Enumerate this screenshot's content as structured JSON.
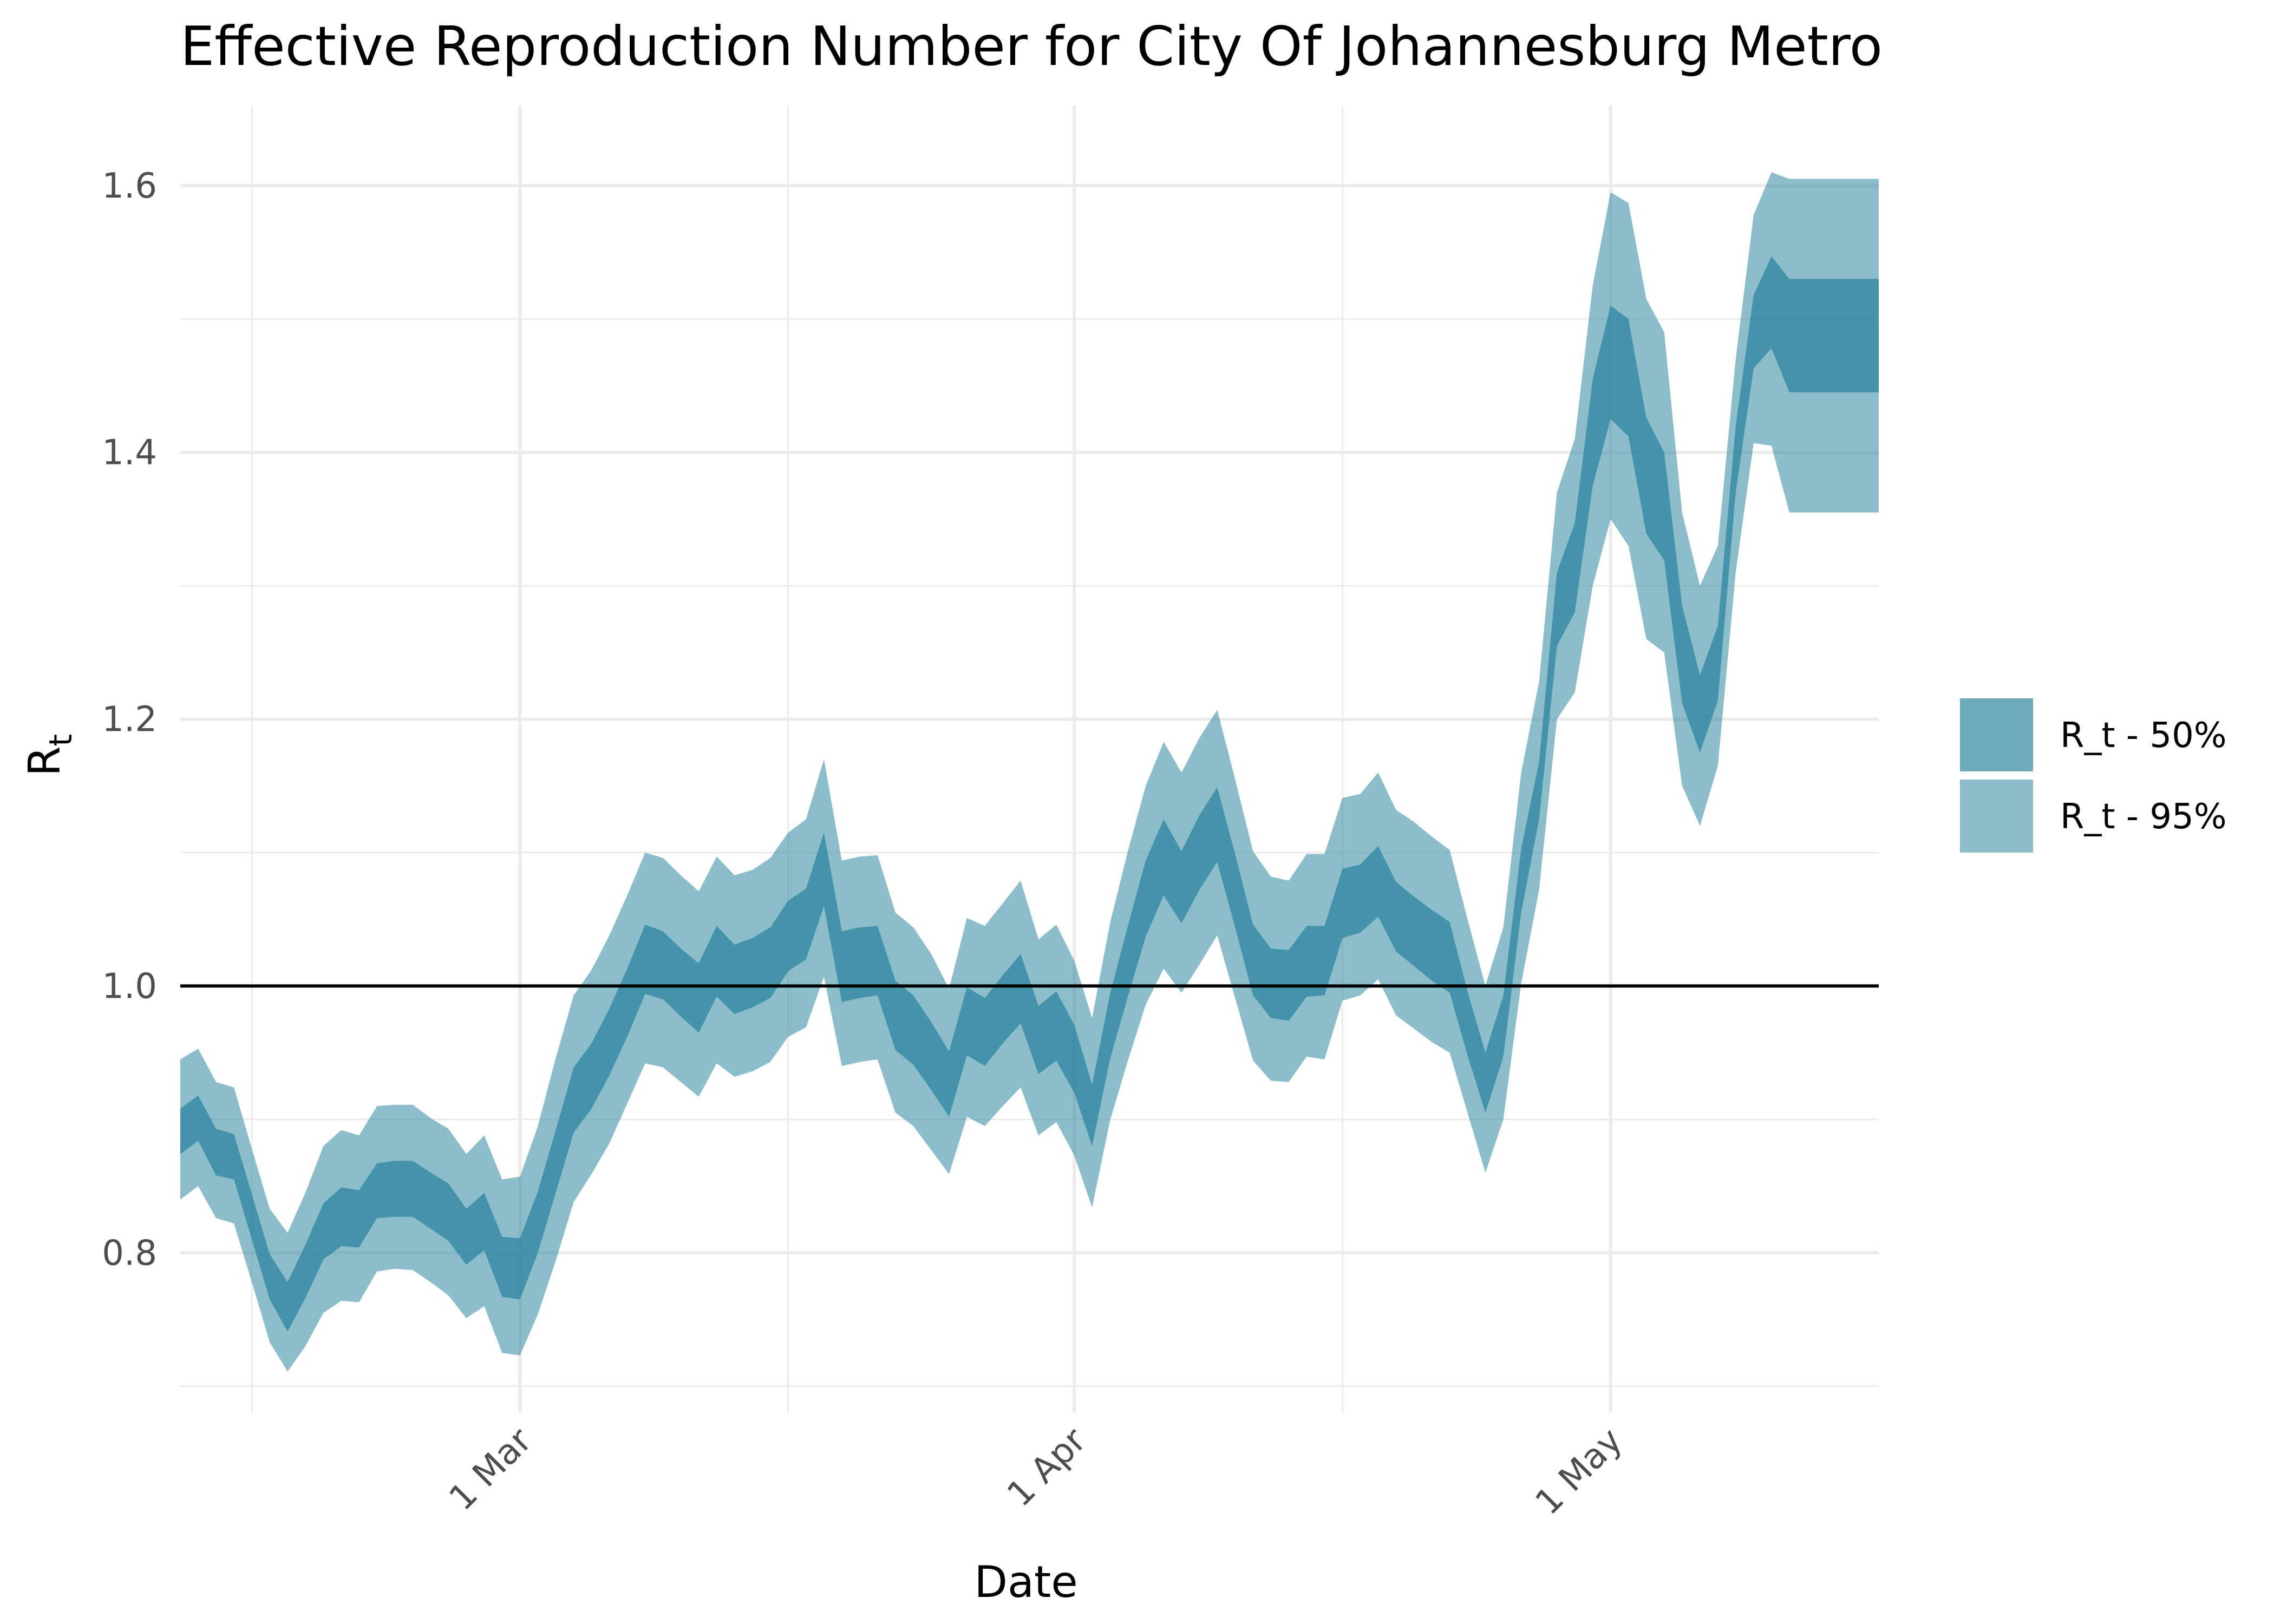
{
  "chart_data": {
    "type": "area",
    "title": "Effective Reproduction Number for City Of Johannesburg Metro",
    "xlabel": "Date",
    "ylabel": "R",
    "ylabel_subscript": "t",
    "ylim": [
      0.68,
      1.66
    ],
    "xlim": [
      "2020-02-11",
      "2020-05-16"
    ],
    "x_ticks": [
      {
        "date": "2020-03-01",
        "label": "1 Mar"
      },
      {
        "date": "2020-04-01",
        "label": "1 Apr"
      },
      {
        "date": "2020-05-01",
        "label": "1 May"
      }
    ],
    "x_minor_ticks": [
      "2020-02-15",
      "2020-03-16",
      "2020-04-16"
    ],
    "y_ticks": [
      0.8,
      1.0,
      1.2,
      1.4,
      1.6
    ],
    "y_minor_ticks": [
      0.7,
      0.9,
      1.1,
      1.3,
      1.5
    ],
    "reference_line": 1.0,
    "grid": true,
    "legend_position": "right",
    "colors": {
      "band_50": "#2e86a0",
      "band_95": "#2e86a0",
      "band_50_opacity": 0.7,
      "band_95_opacity": 0.55,
      "reference_line": "#000000",
      "grid": "#ebebeb"
    },
    "start_date": "2020-02-10",
    "series": [
      {
        "name": "R_t - 95%",
        "dates": [
          "2020-02-11",
          "2020-02-12",
          "2020-02-13",
          "2020-02-14",
          "2020-02-15",
          "2020-02-16",
          "2020-02-17",
          "2020-02-18",
          "2020-02-19",
          "2020-02-20",
          "2020-02-21",
          "2020-02-22",
          "2020-02-23",
          "2020-02-24",
          "2020-02-25",
          "2020-02-26",
          "2020-02-27",
          "2020-02-28",
          "2020-02-29",
          "2020-03-01",
          "2020-03-02",
          "2020-03-03",
          "2020-03-04",
          "2020-03-05",
          "2020-03-06",
          "2020-03-07",
          "2020-03-08",
          "2020-03-09",
          "2020-03-10",
          "2020-03-11",
          "2020-03-12",
          "2020-03-13",
          "2020-03-14",
          "2020-03-15",
          "2020-03-16",
          "2020-03-17",
          "2020-03-18",
          "2020-03-19",
          "2020-03-20",
          "2020-03-21",
          "2020-03-22",
          "2020-03-23",
          "2020-03-24",
          "2020-03-25",
          "2020-03-26",
          "2020-03-27",
          "2020-03-28",
          "2020-03-29",
          "2020-03-30",
          "2020-03-31",
          "2020-04-01",
          "2020-04-02",
          "2020-04-03",
          "2020-04-04",
          "2020-04-05",
          "2020-04-06",
          "2020-04-07",
          "2020-04-08",
          "2020-04-09",
          "2020-04-10",
          "2020-04-11",
          "2020-04-12",
          "2020-04-13",
          "2020-04-14",
          "2020-04-15",
          "2020-04-16",
          "2020-04-17",
          "2020-04-18",
          "2020-04-19",
          "2020-04-20",
          "2020-04-21",
          "2020-04-22",
          "2020-04-23",
          "2020-04-24",
          "2020-04-25",
          "2020-04-26",
          "2020-04-27",
          "2020-04-28",
          "2020-04-29",
          "2020-04-30",
          "2020-05-01",
          "2020-05-02",
          "2020-05-03",
          "2020-05-04",
          "2020-05-05",
          "2020-05-06",
          "2020-05-07",
          "2020-05-08",
          "2020-05-09",
          "2020-05-10",
          "2020-05-11",
          "2020-05-12",
          "2020-05-13",
          "2020-05-14",
          "2020-05-15",
          "2020-05-16"
        ],
        "upper": [
          0.945,
          0.953,
          0.928,
          0.924,
          0.878,
          0.833,
          0.815,
          0.845,
          0.88,
          0.892,
          0.888,
          0.91,
          0.911,
          0.911,
          0.901,
          0.893,
          0.874,
          0.888,
          0.855,
          0.857,
          0.895,
          0.946,
          0.993,
          1.012,
          1.038,
          1.068,
          1.1,
          1.096,
          1.083,
          1.071,
          1.097,
          1.083,
          1.087,
          1.096,
          1.115,
          1.125,
          1.17,
          1.094,
          1.097,
          1.098,
          1.055,
          1.044,
          1.024,
          0.998,
          1.051,
          1.045,
          1.062,
          1.079,
          1.035,
          1.046,
          1.019,
          0.976,
          1.047,
          1.101,
          1.15,
          1.183,
          1.16,
          1.186,
          1.207,
          1.155,
          1.101,
          1.082,
          1.079,
          1.099,
          1.099,
          1.141,
          1.144,
          1.16,
          1.132,
          1.123,
          1.112,
          1.102,
          1.05,
          1.0,
          1.044,
          1.16,
          1.228,
          1.37,
          1.41,
          1.525,
          1.595,
          1.587,
          1.515,
          1.49,
          1.355,
          1.3,
          1.33,
          1.47,
          1.578,
          1.61,
          1.605,
          1.605,
          1.605,
          1.605,
          1.605,
          1.605
        ],
        "lower": [
          0.84,
          0.85,
          0.826,
          0.822,
          0.778,
          0.733,
          0.711,
          0.73,
          0.755,
          0.764,
          0.763,
          0.786,
          0.788,
          0.787,
          0.778,
          0.768,
          0.751,
          0.76,
          0.725,
          0.723,
          0.754,
          0.794,
          0.838,
          0.859,
          0.882,
          0.912,
          0.942,
          0.939,
          0.928,
          0.917,
          0.942,
          0.932,
          0.936,
          0.943,
          0.962,
          0.969,
          1.007,
          0.94,
          0.943,
          0.945,
          0.905,
          0.895,
          0.877,
          0.859,
          0.902,
          0.895,
          0.91,
          0.924,
          0.888,
          0.898,
          0.873,
          0.834,
          0.899,
          0.944,
          0.986,
          1.013,
          0.995,
          1.016,
          1.038,
          0.991,
          0.944,
          0.929,
          0.928,
          0.947,
          0.945,
          0.989,
          0.993,
          1.005,
          0.978,
          0.968,
          0.958,
          0.95,
          0.905,
          0.86,
          0.9,
          1.002,
          1.072,
          1.2,
          1.22,
          1.3,
          1.35,
          1.33,
          1.26,
          1.25,
          1.15,
          1.12,
          1.165,
          1.31,
          1.407,
          1.405,
          1.355,
          1.355,
          1.355,
          1.355,
          1.355,
          1.355
        ]
      },
      {
        "name": "R_t - 50%",
        "dates": [
          "2020-02-11",
          "2020-02-12",
          "2020-02-13",
          "2020-02-14",
          "2020-02-15",
          "2020-02-16",
          "2020-02-17",
          "2020-02-18",
          "2020-02-19",
          "2020-02-20",
          "2020-02-21",
          "2020-02-22",
          "2020-02-23",
          "2020-02-24",
          "2020-02-25",
          "2020-02-26",
          "2020-02-27",
          "2020-02-28",
          "2020-02-29",
          "2020-03-01",
          "2020-03-02",
          "2020-03-03",
          "2020-03-04",
          "2020-03-05",
          "2020-03-06",
          "2020-03-07",
          "2020-03-08",
          "2020-03-09",
          "2020-03-10",
          "2020-03-11",
          "2020-03-12",
          "2020-03-13",
          "2020-03-14",
          "2020-03-15",
          "2020-03-16",
          "2020-03-17",
          "2020-03-18",
          "2020-03-19",
          "2020-03-20",
          "2020-03-21",
          "2020-03-22",
          "2020-03-23",
          "2020-03-24",
          "2020-03-25",
          "2020-03-26",
          "2020-03-27",
          "2020-03-28",
          "2020-03-29",
          "2020-03-30",
          "2020-03-31",
          "2020-04-01",
          "2020-04-02",
          "2020-04-03",
          "2020-04-04",
          "2020-04-05",
          "2020-04-06",
          "2020-04-07",
          "2020-04-08",
          "2020-04-09",
          "2020-04-10",
          "2020-04-11",
          "2020-04-12",
          "2020-04-13",
          "2020-04-14",
          "2020-04-15",
          "2020-04-16",
          "2020-04-17",
          "2020-04-18",
          "2020-04-19",
          "2020-04-20",
          "2020-04-21",
          "2020-04-22",
          "2020-04-23",
          "2020-04-24",
          "2020-04-25",
          "2020-04-26",
          "2020-04-27",
          "2020-04-28",
          "2020-04-29",
          "2020-04-30",
          "2020-05-01",
          "2020-05-02",
          "2020-05-03",
          "2020-05-04",
          "2020-05-05",
          "2020-05-06",
          "2020-05-07",
          "2020-05-08",
          "2020-05-09",
          "2020-05-10",
          "2020-05-11",
          "2020-05-12",
          "2020-05-13",
          "2020-05-14",
          "2020-05-15",
          "2020-05-16"
        ],
        "upper": [
          0.908,
          0.918,
          0.893,
          0.889,
          0.844,
          0.799,
          0.778,
          0.806,
          0.837,
          0.849,
          0.847,
          0.867,
          0.869,
          0.869,
          0.86,
          0.852,
          0.833,
          0.845,
          0.812,
          0.811,
          0.846,
          0.892,
          0.939,
          0.957,
          0.983,
          1.013,
          1.046,
          1.041,
          1.028,
          1.017,
          1.045,
          1.031,
          1.036,
          1.044,
          1.064,
          1.073,
          1.115,
          1.041,
          1.044,
          1.045,
          1.004,
          0.993,
          0.973,
          0.951,
          0.999,
          0.991,
          1.008,
          1.024,
          0.985,
          0.996,
          0.971,
          0.926,
          0.994,
          1.045,
          1.094,
          1.125,
          1.101,
          1.128,
          1.149,
          1.099,
          1.046,
          1.028,
          1.027,
          1.045,
          1.045,
          1.088,
          1.091,
          1.105,
          1.078,
          1.067,
          1.057,
          1.048,
          0.996,
          0.95,
          0.993,
          1.103,
          1.168,
          1.31,
          1.347,
          1.455,
          1.51,
          1.5,
          1.426,
          1.4,
          1.285,
          1.233,
          1.27,
          1.42,
          1.518,
          1.547,
          1.53,
          1.53,
          1.53,
          1.53,
          1.53,
          1.53
        ],
        "lower": [
          0.874,
          0.884,
          0.858,
          0.855,
          0.81,
          0.765,
          0.741,
          0.766,
          0.795,
          0.805,
          0.804,
          0.826,
          0.827,
          0.827,
          0.818,
          0.809,
          0.791,
          0.802,
          0.767,
          0.765,
          0.8,
          0.845,
          0.89,
          0.908,
          0.933,
          0.962,
          0.994,
          0.99,
          0.977,
          0.965,
          0.992,
          0.979,
          0.984,
          0.991,
          1.011,
          1.02,
          1.06,
          0.988,
          0.991,
          0.993,
          0.952,
          0.941,
          0.922,
          0.902,
          0.948,
          0.94,
          0.957,
          0.972,
          0.934,
          0.944,
          0.92,
          0.88,
          0.945,
          0.992,
          1.037,
          1.068,
          1.047,
          1.072,
          1.093,
          1.044,
          0.993,
          0.976,
          0.974,
          0.992,
          0.993,
          1.036,
          1.04,
          1.052,
          1.026,
          1.015,
          1.004,
          0.995,
          0.948,
          0.905,
          0.947,
          1.055,
          1.125,
          1.255,
          1.28,
          1.375,
          1.425,
          1.412,
          1.339,
          1.319,
          1.212,
          1.175,
          1.214,
          1.37,
          1.463,
          1.478,
          1.445,
          1.445,
          1.445,
          1.445,
          1.445,
          1.445
        ]
      }
    ],
    "legend": [
      {
        "label": "R_t - 50%",
        "series": "R_t - 50%"
      },
      {
        "label": "R_t - 95%",
        "series": "R_t - 95%"
      }
    ]
  }
}
